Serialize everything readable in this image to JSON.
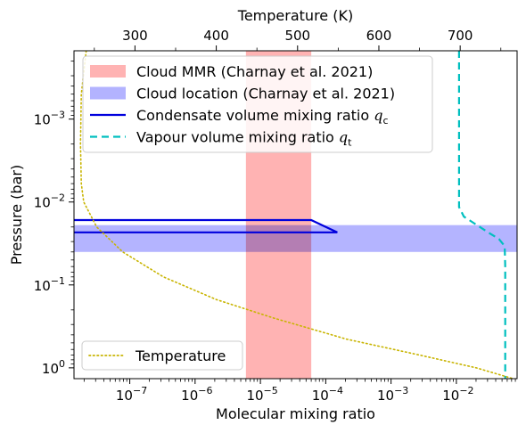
{
  "chart_data": {
    "type": "line",
    "x": {
      "label": "Molecular mixing ratio",
      "scale": "log",
      "lim": [
        1.4e-08,
        0.085
      ],
      "ticks": [
        1e-07,
        1e-06,
        1e-05,
        0.0001,
        0.001,
        0.01
      ],
      "tick_labels": [
        {
          "base": "10",
          "exp": "−7"
        },
        {
          "base": "10",
          "exp": "−6"
        },
        {
          "base": "10",
          "exp": "−5"
        },
        {
          "base": "10",
          "exp": "−4"
        },
        {
          "base": "10",
          "exp": "−3"
        },
        {
          "base": "10",
          "exp": "−2"
        }
      ]
    },
    "x_top": {
      "label": "Temperature (K)",
      "scale": "linear",
      "lim": [
        225,
        770
      ],
      "ticks": [
        300,
        400,
        500,
        600,
        700
      ],
      "tick_labels": [
        "300",
        "400",
        "500",
        "600",
        "700"
      ]
    },
    "y": {
      "label": "Pressure (bar)",
      "scale": "log",
      "inverted": true,
      "lim": [
        0.00015,
        1.35
      ],
      "ticks": [
        0.001,
        0.01,
        0.1,
        1
      ],
      "tick_labels": [
        {
          "base": "10",
          "exp": "−3"
        },
        {
          "base": "10",
          "exp": "−2"
        },
        {
          "base": "10",
          "exp": "−1"
        },
        {
          "base": "10",
          "exp": "0"
        }
      ]
    },
    "bands": [
      {
        "name": "Cloud MMR (Charnay et al. 2021)",
        "orientation": "vertical",
        "x_range": [
          6e-06,
          6e-05
        ],
        "color": "#ffb3b3"
      },
      {
        "name": "Cloud location (Charnay et al. 2021)",
        "orientation": "horizontal",
        "p_range": [
          0.019,
          0.04
        ],
        "color": "#b3b3ff"
      }
    ],
    "series": [
      {
        "name": "Condensate volume mixing ratio q_c",
        "axis": "bottom",
        "style": "solid",
        "color": "#0000dd",
        "points": [
          {
            "x": 1.4e-08,
            "p": 0.0165
          },
          {
            "x": 6e-05,
            "p": 0.0165
          },
          {
            "x": 0.00015,
            "p": 0.0232
          },
          {
            "x": 1.4e-08,
            "p": 0.0232
          }
        ]
      },
      {
        "name": "Vapour volume mixing ratio q_t",
        "axis": "bottom",
        "style": "dashed",
        "color": "#00bfbf",
        "points": [
          {
            "x": 0.011,
            "p": 0.00015
          },
          {
            "x": 0.011,
            "p": 0.0115
          },
          {
            "x": 0.013,
            "p": 0.015
          },
          {
            "x": 0.03,
            "p": 0.023
          },
          {
            "x": 0.045,
            "p": 0.028
          },
          {
            "x": 0.055,
            "p": 0.034
          },
          {
            "x": 0.056,
            "p": 0.06
          },
          {
            "x": 0.056,
            "p": 1.35
          }
        ]
      },
      {
        "name": "Temperature",
        "axis": "top",
        "style": "dotted",
        "color": "#c8b400",
        "points": [
          {
            "x": 240,
            "p": 0.00015
          },
          {
            "x": 234,
            "p": 0.0005
          },
          {
            "x": 233,
            "p": 0.002
          },
          {
            "x": 234,
            "p": 0.006
          },
          {
            "x": 237,
            "p": 0.01
          },
          {
            "x": 253,
            "p": 0.02
          },
          {
            "x": 285,
            "p": 0.04
          },
          {
            "x": 335,
            "p": 0.08
          },
          {
            "x": 400,
            "p": 0.15
          },
          {
            "x": 470,
            "p": 0.25
          },
          {
            "x": 560,
            "p": 0.45
          },
          {
            "x": 650,
            "p": 0.7
          },
          {
            "x": 720,
            "p": 1.0
          },
          {
            "x": 765,
            "p": 1.35
          }
        ]
      }
    ],
    "legend_main": {
      "placement": "top-right",
      "entries": [
        {
          "label": "Cloud MMR (Charnay et al. 2021)",
          "kind": "patch",
          "color": "#ffb3b3"
        },
        {
          "label": "Cloud location (Charnay et al. 2021)",
          "kind": "patch",
          "color": "#b3b3ff"
        },
        {
          "label": "Condensate volume mixing ratio ",
          "sym": "q",
          "sub": "c",
          "kind": "line",
          "style": "solid",
          "color": "#0000dd"
        },
        {
          "label": "Vapour volume mixing ratio ",
          "sym": "q",
          "sub": "t",
          "kind": "line",
          "style": "dashed",
          "color": "#00bfbf"
        }
      ]
    },
    "legend_temp": {
      "placement": "bottom-left",
      "entries": [
        {
          "label": "Temperature",
          "kind": "line",
          "style": "dotted",
          "color": "#c8b400"
        }
      ]
    }
  }
}
